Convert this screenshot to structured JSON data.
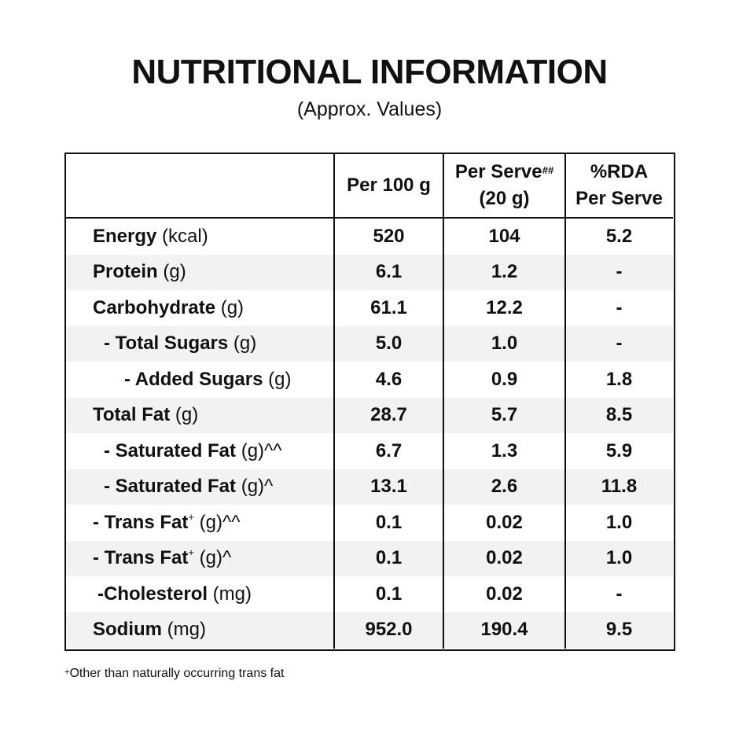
{
  "title": "NUTRITIONAL INFORMATION",
  "subtitle": "(Approx. Values)",
  "headers": {
    "per100": "Per 100 g",
    "perServe_line1": "Per Serve",
    "perServe_sup": "##",
    "perServe_line2": "(20 g)",
    "rda_line1": "%RDA",
    "rda_line2": "Per Serve"
  },
  "rows": [
    {
      "name": "Energy",
      "unit": " (kcal)",
      "sup": "",
      "suffix": "",
      "per100": "520",
      "perServe": "104",
      "rda": "5.2"
    },
    {
      "name": "Protein",
      "unit": " (g)",
      "sup": "",
      "suffix": "",
      "per100": "6.1",
      "perServe": "1.2",
      "rda": "-"
    },
    {
      "name": "Carbohydrate",
      "unit": " (g)",
      "sup": "",
      "suffix": "",
      "per100": "61.1",
      "perServe": "12.2",
      "rda": "-"
    },
    {
      "name": "- Total Sugars",
      "unit": " (g)",
      "sup": "",
      "suffix": "",
      "per100": "5.0",
      "perServe": "1.0",
      "rda": "-"
    },
    {
      "name": "- Added Sugars",
      "unit": " (g)",
      "sup": "",
      "suffix": "",
      "per100": "4.6",
      "perServe": "0.9",
      "rda": "1.8"
    },
    {
      "name": "Total Fat",
      "unit": " (g)",
      "sup": "",
      "suffix": "",
      "per100": "28.7",
      "perServe": "5.7",
      "rda": "8.5"
    },
    {
      "name": "- Saturated Fat",
      "unit": " (g)^^",
      "sup": "",
      "suffix": "",
      "per100": "6.7",
      "perServe": "1.3",
      "rda": "5.9"
    },
    {
      "name": "- Saturated Fat",
      "unit": " (g)^",
      "sup": "",
      "suffix": "",
      "per100": "13.1",
      "perServe": "2.6",
      "rda": "11.8"
    },
    {
      "name": "- Trans Fat",
      "unit": " (g)^^",
      "sup": "+",
      "suffix": "",
      "per100": "0.1",
      "perServe": "0.02",
      "rda": "1.0"
    },
    {
      "name": "- Trans Fat",
      "unit": " (g)^",
      "sup": "+",
      "suffix": "",
      "per100": "0.1",
      "perServe": "0.02",
      "rda": "1.0"
    },
    {
      "name": "-Cholesterol",
      "unit": " (mg)",
      "sup": "",
      "suffix": "",
      "per100": "0.1",
      "perServe": "0.02",
      "rda": "-"
    },
    {
      "name": "Sodium",
      "unit": " (mg)",
      "sup": "",
      "suffix": "",
      "per100": "952.0",
      "perServe": "190.4",
      "rda": "9.5"
    }
  ],
  "footnote": {
    "sup": "+",
    "text": "Other than naturally occurring trans fat"
  }
}
